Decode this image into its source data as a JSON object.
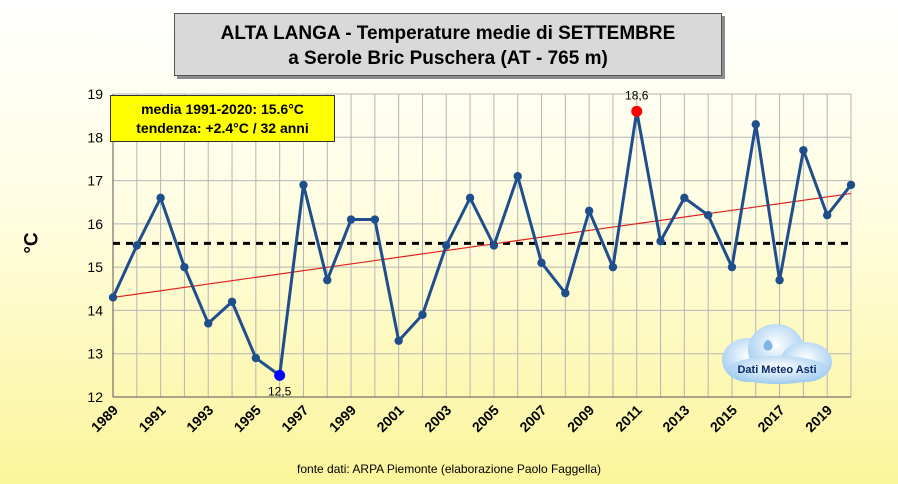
{
  "header": {
    "title_line1": "ALTA LANGA - Temperature medie di SETTEMBRE",
    "title_line2": "a Serole Bric Puschera (AT - 765 m)"
  },
  "info": {
    "line1": "media 1991-2020: 15.6°C",
    "line2": "tendenza: +2.4°C / 32 anni"
  },
  "source_note": "fonte dati: ARPA Piemonte (elaborazione Paolo Faggella)",
  "logo": {
    "text": "Dati Meteo Asti",
    "icon": "cloud-icon"
  },
  "chart_data": {
    "type": "line",
    "ylabel": "°C",
    "ylim": [
      12,
      19
    ],
    "yticks": [
      12,
      13,
      14,
      15,
      16,
      17,
      18,
      19
    ],
    "xlim": [
      1989,
      2020
    ],
    "xtick_labels": [
      "1989",
      "1991",
      "1993",
      "1995",
      "1997",
      "1999",
      "2001",
      "2003",
      "2005",
      "2007",
      "2009",
      "2011",
      "2013",
      "2015",
      "2017",
      "2019"
    ],
    "grid": true,
    "x": [
      1989,
      1990,
      1991,
      1992,
      1993,
      1994,
      1995,
      1996,
      1997,
      1998,
      1999,
      2000,
      2001,
      2002,
      2003,
      2004,
      2005,
      2006,
      2007,
      2008,
      2009,
      2010,
      2011,
      2012,
      2013,
      2014,
      2015,
      2016,
      2017,
      2018,
      2019,
      2020
    ],
    "series": [
      {
        "values": [
          14.3,
          15.5,
          16.6,
          15.0,
          13.7,
          14.2,
          12.9,
          12.5,
          16.9,
          14.7,
          16.1,
          16.1,
          13.3,
          13.9,
          15.5,
          16.6,
          15.5,
          17.1,
          15.1,
          14.4,
          16.3,
          15.0,
          18.6,
          15.6,
          16.6,
          16.2,
          15.0,
          18.3,
          14.7,
          17.7,
          16.2,
          16.9
        ],
        "color": "#1f4e8c"
      }
    ],
    "mean_line": {
      "value": 15.55,
      "color": "#000000"
    },
    "trend_line": {
      "start": [
        1989,
        14.3
      ],
      "end": [
        2020,
        16.7
      ],
      "color": "#e02020"
    },
    "annotations": [
      {
        "x": 2011,
        "y": 18.6,
        "label": "18,6",
        "color": "#ff0000",
        "position": "above"
      },
      {
        "x": 1996,
        "y": 12.5,
        "label": "12,5",
        "color": "#0000ff",
        "position": "below"
      }
    ]
  }
}
